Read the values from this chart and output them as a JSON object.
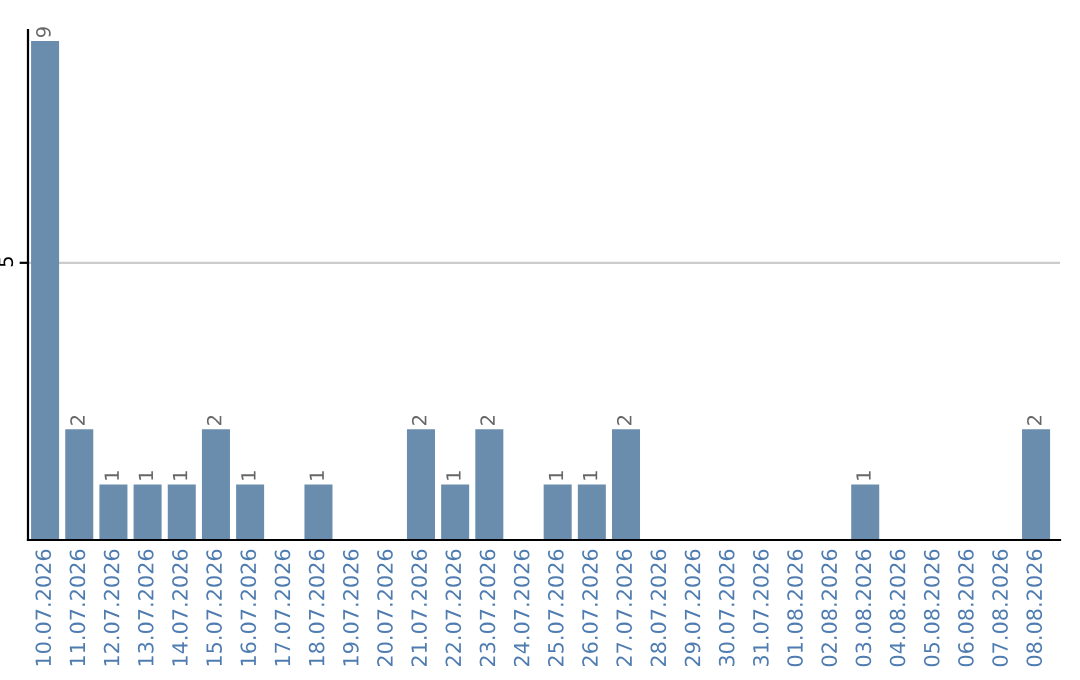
{
  "chart_data": {
    "type": "bar",
    "categories": [
      "10.07.2026",
      "11.07.2026",
      "12.07.2026",
      "13.07.2026",
      "14.07.2026",
      "15.07.2026",
      "16.07.2026",
      "17.07.2026",
      "18.07.2026",
      "19.07.2026",
      "20.07.2026",
      "21.07.2026",
      "22.07.2026",
      "23.07.2026",
      "24.07.2026",
      "25.07.2026",
      "26.07.2026",
      "27.07.2026",
      "28.07.2026",
      "29.07.2026",
      "30.07.2026",
      "31.07.2026",
      "01.08.2026",
      "02.08.2026",
      "03.08.2026",
      "04.08.2026",
      "05.08.2026",
      "06.08.2026",
      "07.08.2026",
      "08.08.2026"
    ],
    "values": [
      9,
      2,
      1,
      1,
      1,
      2,
      1,
      0,
      1,
      0,
      0,
      2,
      1,
      2,
      0,
      1,
      1,
      2,
      0,
      0,
      0,
      0,
      0,
      0,
      1,
      0,
      0,
      0,
      0,
      2
    ],
    "value_labels": [
      "9",
      "2",
      "1",
      "1",
      "1",
      "2",
      "1",
      null,
      "1",
      null,
      null,
      "2",
      "1",
      "2",
      null,
      "1",
      "1",
      "2",
      null,
      null,
      null,
      null,
      null,
      null,
      "1",
      null,
      null,
      null,
      null,
      "2"
    ],
    "color": "#6a8cad",
    "ylim": [
      0,
      9.2
    ],
    "yticks": [
      5
    ],
    "grid": "y"
  }
}
